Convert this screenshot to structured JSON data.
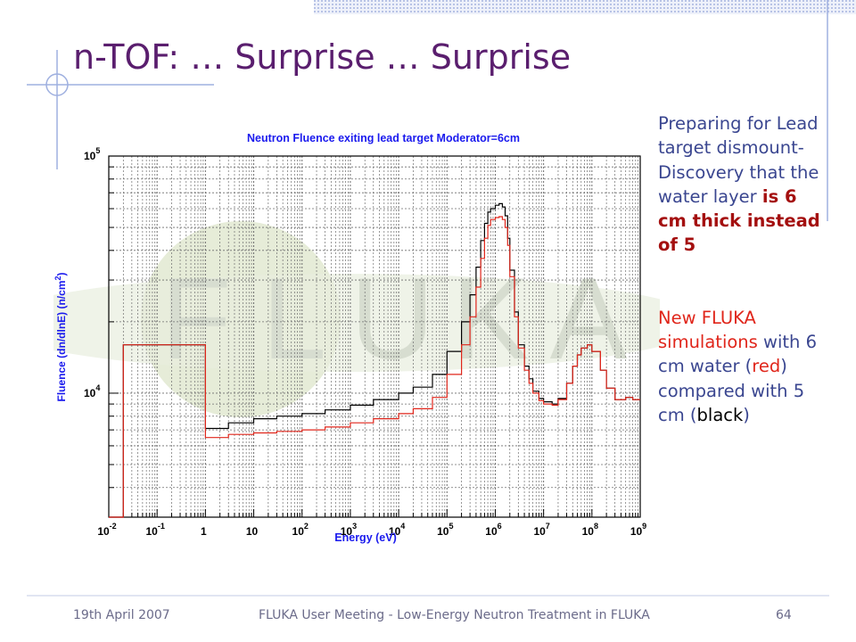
{
  "slide": {
    "title": "n-TOF: … Surprise … Surprise",
    "watermark_letters": [
      "F",
      "L",
      "U",
      "K",
      "A"
    ],
    "side_text": {
      "p1_a": "Preparing for Lead target dismount- Discovery that the water layer ",
      "p1_b": "is 6 cm thick instead of 5",
      "p2_a": "New FLUKA simulations",
      "p2_b": " with 6 cm water (",
      "p2_red": "red",
      "p2_c": ") compared with 5 cm (",
      "p2_black": "black",
      "p2_d": ")"
    },
    "footer": {
      "date": "19th April 2007",
      "center": "FLUKA User Meeting - Low-Energy Neutron Treatment in FLUKA",
      "page": "64"
    },
    "colors": {
      "title": "#5a1e6e",
      "text": "#3a4690",
      "highlight": "#a40f0f",
      "red_series": "#e0261b",
      "black_series": "#000000",
      "chart_text": "#1a1aee"
    }
  },
  "chart_data": {
    "type": "line",
    "title": "Neutron Fluence exiting lead target Moderator=6cm",
    "xlabel": "Energy (eV)",
    "ylabel": "Fluence (dn/dlnE) (n/cm²)",
    "x_scale": "log",
    "y_scale": "log",
    "xlim": [
      0.01,
      1000000000
    ],
    "ylim": [
      3000,
      100000
    ],
    "x_ticks": [
      {
        "base": "10",
        "exp": "-2"
      },
      {
        "base": "10",
        "exp": "-1"
      },
      {
        "base": "1",
        "exp": ""
      },
      {
        "base": "10",
        "exp": ""
      },
      {
        "base": "10",
        "exp": "2"
      },
      {
        "base": "10",
        "exp": "3"
      },
      {
        "base": "10",
        "exp": "4"
      },
      {
        "base": "10",
        "exp": "5"
      },
      {
        "base": "10",
        "exp": "6"
      },
      {
        "base": "10",
        "exp": "7"
      },
      {
        "base": "10",
        "exp": "8"
      },
      {
        "base": "10",
        "exp": "9"
      }
    ],
    "y_ticks": [
      {
        "base": "10",
        "exp": "4",
        "value": 10000
      },
      {
        "base": "10",
        "exp": "5",
        "value": 100000
      }
    ],
    "grid": true,
    "series": [
      {
        "key": "black",
        "color": "#000000",
        "x": [
          0.01,
          0.02,
          0.5,
          1,
          3,
          10,
          30,
          100,
          300,
          1000,
          3000,
          10000,
          20000,
          50000,
          100000,
          200000,
          300000,
          400000,
          500000,
          600000,
          700000,
          800000,
          1000000,
          1200000,
          1400000,
          1600000,
          1800000,
          2000000,
          2500000,
          3000000,
          4000000,
          5000000,
          6000000,
          8000000,
          10000000,
          15000000,
          20000000,
          30000000,
          40000000,
          50000000,
          60000000,
          80000000,
          100000000,
          150000000,
          200000000,
          300000000,
          500000000,
          700000000,
          1000000000
        ],
        "y": [
          3000,
          16000,
          16000,
          7100,
          7500,
          7800,
          8000,
          8200,
          8500,
          8900,
          9400,
          10000,
          10600,
          12000,
          15000,
          20000,
          26000,
          34000,
          44000,
          52000,
          58000,
          60000,
          62000,
          63000,
          61000,
          56000,
          45000,
          33000,
          22000,
          16000,
          13000,
          11500,
          10200,
          9500,
          9200,
          9000,
          9500,
          11000,
          13000,
          14500,
          15500,
          16000,
          15000,
          12500,
          10500,
          9400,
          9600,
          9400,
          9400
        ]
      },
      {
        "key": "red",
        "color": "#e0261b",
        "x": [
          0.01,
          0.02,
          0.5,
          1,
          3,
          10,
          30,
          100,
          300,
          1000,
          3000,
          10000,
          20000,
          50000,
          100000,
          200000,
          300000,
          400000,
          500000,
          600000,
          700000,
          800000,
          1000000,
          1200000,
          1400000,
          1600000,
          1800000,
          2000000,
          2500000,
          3000000,
          4000000,
          5000000,
          6000000,
          8000000,
          10000000,
          15000000,
          20000000,
          30000000,
          40000000,
          50000000,
          60000000,
          80000000,
          100000000,
          150000000,
          200000000,
          300000000,
          500000000,
          700000000,
          1000000000
        ],
        "y": [
          3000,
          16000,
          16000,
          6500,
          6700,
          6800,
          6900,
          7000,
          7200,
          7500,
          7800,
          8200,
          8600,
          9600,
          12000,
          16000,
          21000,
          28000,
          37000,
          45000,
          51000,
          54000,
          55000,
          55500,
          54000,
          50000,
          42000,
          31000,
          21000,
          15500,
          12500,
          11000,
          10000,
          9300,
          9000,
          8900,
          9400,
          11000,
          13000,
          14500,
          15500,
          16000,
          15000,
          12500,
          10500,
          9400,
          9600,
          9400,
          9400
        ]
      }
    ]
  }
}
